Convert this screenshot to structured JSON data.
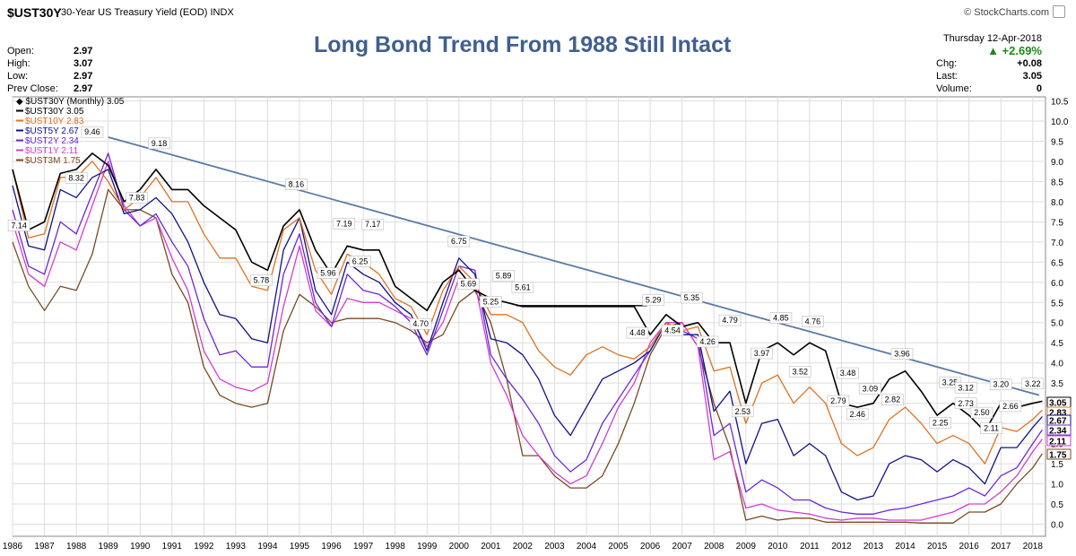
{
  "header": {
    "symbol": "$UST30Y",
    "description": "30-Year US Treasury Yield (EOD)",
    "exchange": "INDX",
    "copyright": "© StockCharts.com",
    "date": "Thursday  12-Apr-2018",
    "change_pct": "▲ +2.69%"
  },
  "ohlc": [
    {
      "label": "Open:",
      "value": "2.97"
    },
    {
      "label": "High:",
      "value": "3.07"
    },
    {
      "label": "Low:",
      "value": "2.97"
    },
    {
      "label": "Prev Close:",
      "value": "2.97"
    }
  ],
  "quote": [
    {
      "label": "Chg:",
      "value": "+0.08"
    },
    {
      "label": "Last:",
      "value": "3.05"
    },
    {
      "label": "Volume:",
      "value": "0"
    }
  ],
  "colors": {
    "UST30Y": "#000000",
    "UST10Y": "#e07020",
    "UST5Y": "#10108a",
    "UST2Y": "#6a28d8",
    "UST1Y": "#d23cd2",
    "UST3M": "#7a4a22",
    "trendline": "#5a7aa8",
    "grid": "#dddddd"
  },
  "chart_data": {
    "type": "line",
    "title": "Long Bond Trend From 1988 Still Intact",
    "legend_title": "$UST30Y (Monthly) 3.05",
    "legend_placement": "top-left",
    "grid": true,
    "xlim": [
      1986,
      2018.4
    ],
    "ylim": [
      -0.3,
      10.6
    ],
    "x_ticks": [
      "1986",
      "1987",
      "1988",
      "1989",
      "1990",
      "1991",
      "1992",
      "1993",
      "1994",
      "1995",
      "1996",
      "1997",
      "1998",
      "1999",
      "2000",
      "2001",
      "2002",
      "2003",
      "2004",
      "2005",
      "2006",
      "2007",
      "2008",
      "2009",
      "2010",
      "2011",
      "2012",
      "2013",
      "2014",
      "2015",
      "2016",
      "2017",
      "2018"
    ],
    "y_ticks": [
      "0.0",
      "0.5",
      "1.0",
      "1.5",
      "2.0",
      "2.5",
      "3.0",
      "3.5",
      "4.0",
      "4.5",
      "5.0",
      "5.5",
      "6.0",
      "6.5",
      "7.0",
      "7.5",
      "8.0",
      "8.5",
      "9.0",
      "9.5",
      "10.0",
      "10.5"
    ],
    "x": [
      1986.0,
      1986.5,
      1987.0,
      1987.5,
      1988.0,
      1988.5,
      1989.0,
      1989.5,
      1990.0,
      1990.5,
      1991.0,
      1991.5,
      1992.0,
      1992.5,
      1993.0,
      1993.5,
      1994.0,
      1994.5,
      1995.0,
      1995.5,
      1996.0,
      1996.5,
      1997.0,
      1997.5,
      1998.0,
      1998.5,
      1999.0,
      1999.5,
      2000.0,
      2000.5,
      2001.0,
      2001.5,
      2002.0,
      2002.5,
      2003.0,
      2003.5,
      2004.0,
      2004.5,
      2005.0,
      2005.5,
      2006.0,
      2006.5,
      2007.0,
      2007.5,
      2008.0,
      2008.5,
      2009.0,
      2009.5,
      2010.0,
      2010.5,
      2011.0,
      2011.5,
      2012.0,
      2012.5,
      2013.0,
      2013.5,
      2014.0,
      2014.5,
      2015.0,
      2015.5,
      2016.0,
      2016.5,
      2017.0,
      2017.5,
      2018.0,
      2018.3
    ],
    "series": [
      {
        "name": "$UST30Y 3.05",
        "key": "UST30Y",
        "values": [
          8.8,
          7.3,
          7.5,
          8.7,
          8.8,
          9.2,
          8.9,
          8.0,
          8.3,
          8.8,
          8.3,
          8.3,
          7.9,
          7.6,
          7.3,
          6.5,
          6.3,
          7.4,
          7.8,
          6.8,
          6.2,
          6.9,
          6.8,
          6.8,
          5.9,
          5.6,
          5.3,
          6.0,
          6.3,
          5.8,
          5.6,
          5.5,
          5.4,
          5.4,
          5.4,
          5.4,
          5.4,
          5.4,
          5.4,
          5.4,
          4.7,
          5.2,
          4.9,
          5.0,
          4.5,
          4.5,
          3.0,
          4.3,
          4.5,
          4.2,
          4.5,
          4.3,
          3.0,
          2.9,
          3.0,
          3.6,
          3.8,
          3.3,
          2.7,
          3.0,
          2.7,
          2.3,
          3.0,
          2.9,
          3.0,
          3.05
        ]
      },
      {
        "name": "$UST10Y 2.83",
        "key": "UST10Y",
        "values": [
          8.8,
          7.1,
          7.2,
          8.6,
          8.6,
          9.0,
          8.5,
          7.8,
          8.1,
          8.6,
          8.0,
          8.0,
          7.2,
          6.6,
          6.6,
          5.9,
          5.8,
          7.3,
          7.6,
          6.3,
          5.7,
          6.7,
          6.5,
          6.2,
          5.6,
          5.4,
          4.7,
          5.8,
          6.4,
          6.0,
          5.2,
          5.2,
          5.0,
          4.3,
          3.9,
          3.7,
          4.2,
          4.4,
          4.2,
          4.1,
          4.4,
          5.0,
          4.8,
          4.9,
          3.8,
          3.9,
          2.5,
          3.5,
          3.7,
          3.0,
          3.4,
          3.0,
          2.0,
          1.7,
          1.9,
          2.6,
          2.9,
          2.5,
          2.0,
          2.2,
          2.0,
          1.5,
          2.4,
          2.3,
          2.6,
          2.83
        ]
      },
      {
        "name": "$UST5Y 2.67",
        "key": "UST5Y",
        "values": [
          8.4,
          6.9,
          6.8,
          8.3,
          8.1,
          8.6,
          8.8,
          7.7,
          7.8,
          8.1,
          7.7,
          7.0,
          6.0,
          5.2,
          5.1,
          4.6,
          4.5,
          6.8,
          7.6,
          5.8,
          5.2,
          6.5,
          6.2,
          6.0,
          5.5,
          5.2,
          4.3,
          5.5,
          6.6,
          6.2,
          4.6,
          4.5,
          4.2,
          3.6,
          2.7,
          2.2,
          2.9,
          3.6,
          3.8,
          4.0,
          4.3,
          5.0,
          4.7,
          4.7,
          2.8,
          3.3,
          1.5,
          2.5,
          2.6,
          1.7,
          2.0,
          1.7,
          0.8,
          0.6,
          0.7,
          1.5,
          1.7,
          1.6,
          1.3,
          1.6,
          1.4,
          1.0,
          1.9,
          1.9,
          2.4,
          2.67
        ]
      },
      {
        "name": "$UST2Y 2.34",
        "key": "UST2Y",
        "values": [
          7.8,
          6.4,
          6.2,
          7.5,
          7.2,
          8.2,
          9.2,
          7.8,
          7.4,
          7.7,
          7.0,
          6.4,
          5.1,
          4.2,
          4.3,
          3.9,
          3.9,
          6.2,
          7.2,
          5.5,
          4.9,
          6.2,
          5.8,
          5.7,
          5.4,
          5.0,
          4.2,
          5.3,
          6.4,
          6.3,
          4.2,
          3.6,
          3.1,
          2.5,
          1.7,
          1.3,
          1.6,
          2.5,
          3.1,
          3.7,
          4.3,
          5.0,
          4.8,
          4.6,
          2.2,
          2.5,
          0.8,
          1.1,
          0.9,
          0.6,
          0.6,
          0.4,
          0.3,
          0.25,
          0.25,
          0.35,
          0.4,
          0.5,
          0.6,
          0.7,
          0.9,
          0.7,
          1.2,
          1.4,
          2.0,
          2.34
        ]
      },
      {
        "name": "$UST1Y 2.11",
        "key": "UST1Y",
        "values": [
          7.5,
          6.2,
          5.9,
          7.0,
          6.8,
          7.9,
          9.0,
          7.9,
          7.4,
          7.6,
          6.6,
          5.8,
          4.3,
          3.6,
          3.4,
          3.3,
          3.5,
          5.4,
          6.9,
          5.3,
          4.9,
          5.6,
          5.5,
          5.5,
          5.3,
          5.1,
          4.4,
          5.0,
          6.1,
          6.0,
          4.0,
          3.2,
          2.2,
          1.7,
          1.3,
          1.0,
          1.2,
          2.0,
          2.9,
          3.5,
          4.5,
          5.0,
          5.0,
          4.4,
          1.6,
          1.8,
          0.4,
          0.5,
          0.35,
          0.3,
          0.25,
          0.15,
          0.1,
          0.15,
          0.15,
          0.1,
          0.1,
          0.1,
          0.2,
          0.3,
          0.5,
          0.5,
          0.8,
          1.2,
          1.8,
          2.11
        ]
      },
      {
        "name": "$UST3M 1.75",
        "key": "UST3M",
        "values": [
          7.0,
          5.9,
          5.3,
          5.9,
          5.8,
          6.7,
          8.3,
          7.8,
          7.8,
          7.6,
          6.2,
          5.5,
          3.9,
          3.2,
          3.0,
          2.9,
          3.0,
          4.8,
          5.7,
          5.4,
          5.0,
          5.1,
          5.1,
          5.1,
          5.0,
          4.8,
          4.5,
          4.7,
          5.5,
          5.8,
          5.0,
          3.6,
          1.7,
          1.7,
          1.2,
          0.9,
          0.9,
          1.2,
          2.0,
          3.0,
          4.2,
          4.9,
          5.0,
          4.4,
          3.0,
          1.9,
          0.1,
          0.2,
          0.1,
          0.15,
          0.15,
          0.05,
          0.05,
          0.05,
          0.05,
          0.05,
          0.05,
          0.03,
          0.03,
          0.03,
          0.3,
          0.3,
          0.5,
          1.0,
          1.4,
          1.75
        ]
      }
    ],
    "trendline": {
      "x": [
        1989.0,
        2018.2
      ],
      "y": [
        9.6,
        3.2
      ]
    },
    "resistance_segment": {
      "x": [
        2001.8,
        2005.9
      ],
      "y": [
        5.42,
        5.42
      ]
    },
    "annotations": [
      {
        "label": "9.46",
        "x": 1988.5,
        "y": 9.46
      },
      {
        "label": "9.18",
        "x": 1990.6,
        "y": 9.18
      },
      {
        "label": "8.32",
        "x": 1988.0,
        "y": 8.32
      },
      {
        "label": "7.83",
        "x": 1989.9,
        "y": 7.83
      },
      {
        "label": "7.14",
        "x": 1986.2,
        "y": 7.14
      },
      {
        "label": "8.16",
        "x": 1994.9,
        "y": 8.16
      },
      {
        "label": "5.78",
        "x": 1993.8,
        "y": 5.78
      },
      {
        "label": "7.19",
        "x": 1996.4,
        "y": 7.19
      },
      {
        "label": "7.17",
        "x": 1997.3,
        "y": 7.17
      },
      {
        "label": "5.96",
        "x": 1995.9,
        "y": 5.96
      },
      {
        "label": "6.25",
        "x": 1996.9,
        "y": 6.25
      },
      {
        "label": "4.70",
        "x": 1998.8,
        "y": 4.7
      },
      {
        "label": "6.75",
        "x": 2000.0,
        "y": 6.75
      },
      {
        "label": "5.69",
        "x": 2000.3,
        "y": 5.69
      },
      {
        "label": "5.89",
        "x": 2001.4,
        "y": 5.89
      },
      {
        "label": "5.61",
        "x": 2002.0,
        "y": 5.61
      },
      {
        "label": "5.25",
        "x": 2001.0,
        "y": 5.25
      },
      {
        "label": "4.48",
        "x": 2005.6,
        "y": 4.48
      },
      {
        "label": "5.29",
        "x": 2006.1,
        "y": 5.29
      },
      {
        "label": "4.54",
        "x": 2006.7,
        "y": 4.54
      },
      {
        "label": "5.35",
        "x": 2007.3,
        "y": 5.35
      },
      {
        "label": "4.26",
        "x": 2007.8,
        "y": 4.26
      },
      {
        "label": "4.79",
        "x": 2008.5,
        "y": 4.79
      },
      {
        "label": "2.53",
        "x": 2008.9,
        "y": 2.53
      },
      {
        "label": "3.97",
        "x": 2009.5,
        "y": 3.97
      },
      {
        "label": "4.85",
        "x": 2010.1,
        "y": 4.85
      },
      {
        "label": "4.76",
        "x": 2011.1,
        "y": 4.76
      },
      {
        "label": "3.52",
        "x": 2010.7,
        "y": 3.52
      },
      {
        "label": "2.79",
        "x": 2011.9,
        "y": 2.79
      },
      {
        "label": "3.48",
        "x": 2012.2,
        "y": 3.48
      },
      {
        "label": "3.09",
        "x": 2012.9,
        "y": 3.09
      },
      {
        "label": "2.46",
        "x": 2012.5,
        "y": 2.46
      },
      {
        "label": "2.82",
        "x": 2013.6,
        "y": 2.82
      },
      {
        "label": "3.96",
        "x": 2013.9,
        "y": 3.96
      },
      {
        "label": "3.25",
        "x": 2015.4,
        "y": 3.25
      },
      {
        "label": "3.12",
        "x": 2015.9,
        "y": 3.12
      },
      {
        "label": "2.73",
        "x": 2015.9,
        "y": 2.73
      },
      {
        "label": "2.25",
        "x": 2015.1,
        "y": 2.25
      },
      {
        "label": "2.50",
        "x": 2016.4,
        "y": 2.5
      },
      {
        "label": "2.11",
        "x": 2016.7,
        "y": 2.11
      },
      {
        "label": "3.20",
        "x": 2017.0,
        "y": 3.2
      },
      {
        "label": "2.66",
        "x": 2017.3,
        "y": 2.66
      },
      {
        "label": "3.22",
        "x": 2018.0,
        "y": 3.22
      }
    ],
    "last_value_tags": [
      {
        "label": "3.05",
        "key": "UST30Y",
        "y": 3.05
      },
      {
        "label": "2.83",
        "key": "UST10Y",
        "y": 2.83
      },
      {
        "label": "2.67",
        "key": "UST5Y",
        "y": 2.67
      },
      {
        "label": "2.34",
        "key": "UST2Y",
        "y": 2.34
      },
      {
        "label": "2.11",
        "key": "UST1Y",
        "y": 2.11
      },
      {
        "label": "1.75",
        "key": "UST3M",
        "y": 1.75
      }
    ]
  }
}
